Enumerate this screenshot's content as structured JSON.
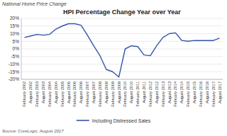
{
  "chart_data": {
    "type": "line",
    "title": "HPI Percentage Change Year over Year",
    "subtitle": "National Home Price Change",
    "source": "Source: CoreLogic, August 2017",
    "categories": [
      "February\n2002",
      "August\n2002",
      "February\n2003",
      "August\n2003",
      "February\n2004",
      "August\n2004",
      "February\n2005",
      "August\n2005",
      "February\n2006",
      "August\n2006",
      "February\n2007",
      "August\n2007",
      "February\n2008",
      "August\n2008",
      "February\n2009",
      "August\n2009",
      "February\n2010",
      "August\n2010",
      "February\n2011",
      "August\n2011",
      "February\n2012",
      "August\n2012",
      "February\n2013",
      "August\n2013",
      "February\n2014",
      "August\n2014",
      "February\n2015",
      "August\n2015",
      "February\n2016",
      "August\n2016",
      "February\n2017",
      "August\n2017"
    ],
    "series": [
      {
        "name": "Including Distressed Sales",
        "color": "#3355aa",
        "values": [
          7.5,
          8.5,
          9.5,
          9.0,
          9.5,
          13.0,
          15.0,
          16.5,
          16.5,
          15.5,
          9.0,
          2.0,
          -4.5,
          -13.5,
          -15.0,
          -18.5,
          0.0,
          2.0,
          1.5,
          -4.0,
          -4.5,
          2.0,
          7.5,
          10.0,
          10.5,
          5.5,
          5.0,
          5.5,
          5.5,
          5.5,
          5.5,
          7.0
        ]
      }
    ],
    "ylim": [
      -20,
      20
    ],
    "yticks": [
      {
        "value": -20,
        "label": "-20%"
      },
      {
        "value": -15,
        "label": "-15%"
      },
      {
        "value": -10,
        "label": "-10%"
      },
      {
        "value": -5,
        "label": "-5%"
      },
      {
        "value": 0,
        "label": "0%"
      },
      {
        "value": 5,
        "label": "5%"
      },
      {
        "value": 10,
        "label": "10%"
      },
      {
        "value": 15,
        "label": "15%"
      },
      {
        "value": 20,
        "label": "20%"
      }
    ],
    "grid": true,
    "legend": "bottom"
  }
}
